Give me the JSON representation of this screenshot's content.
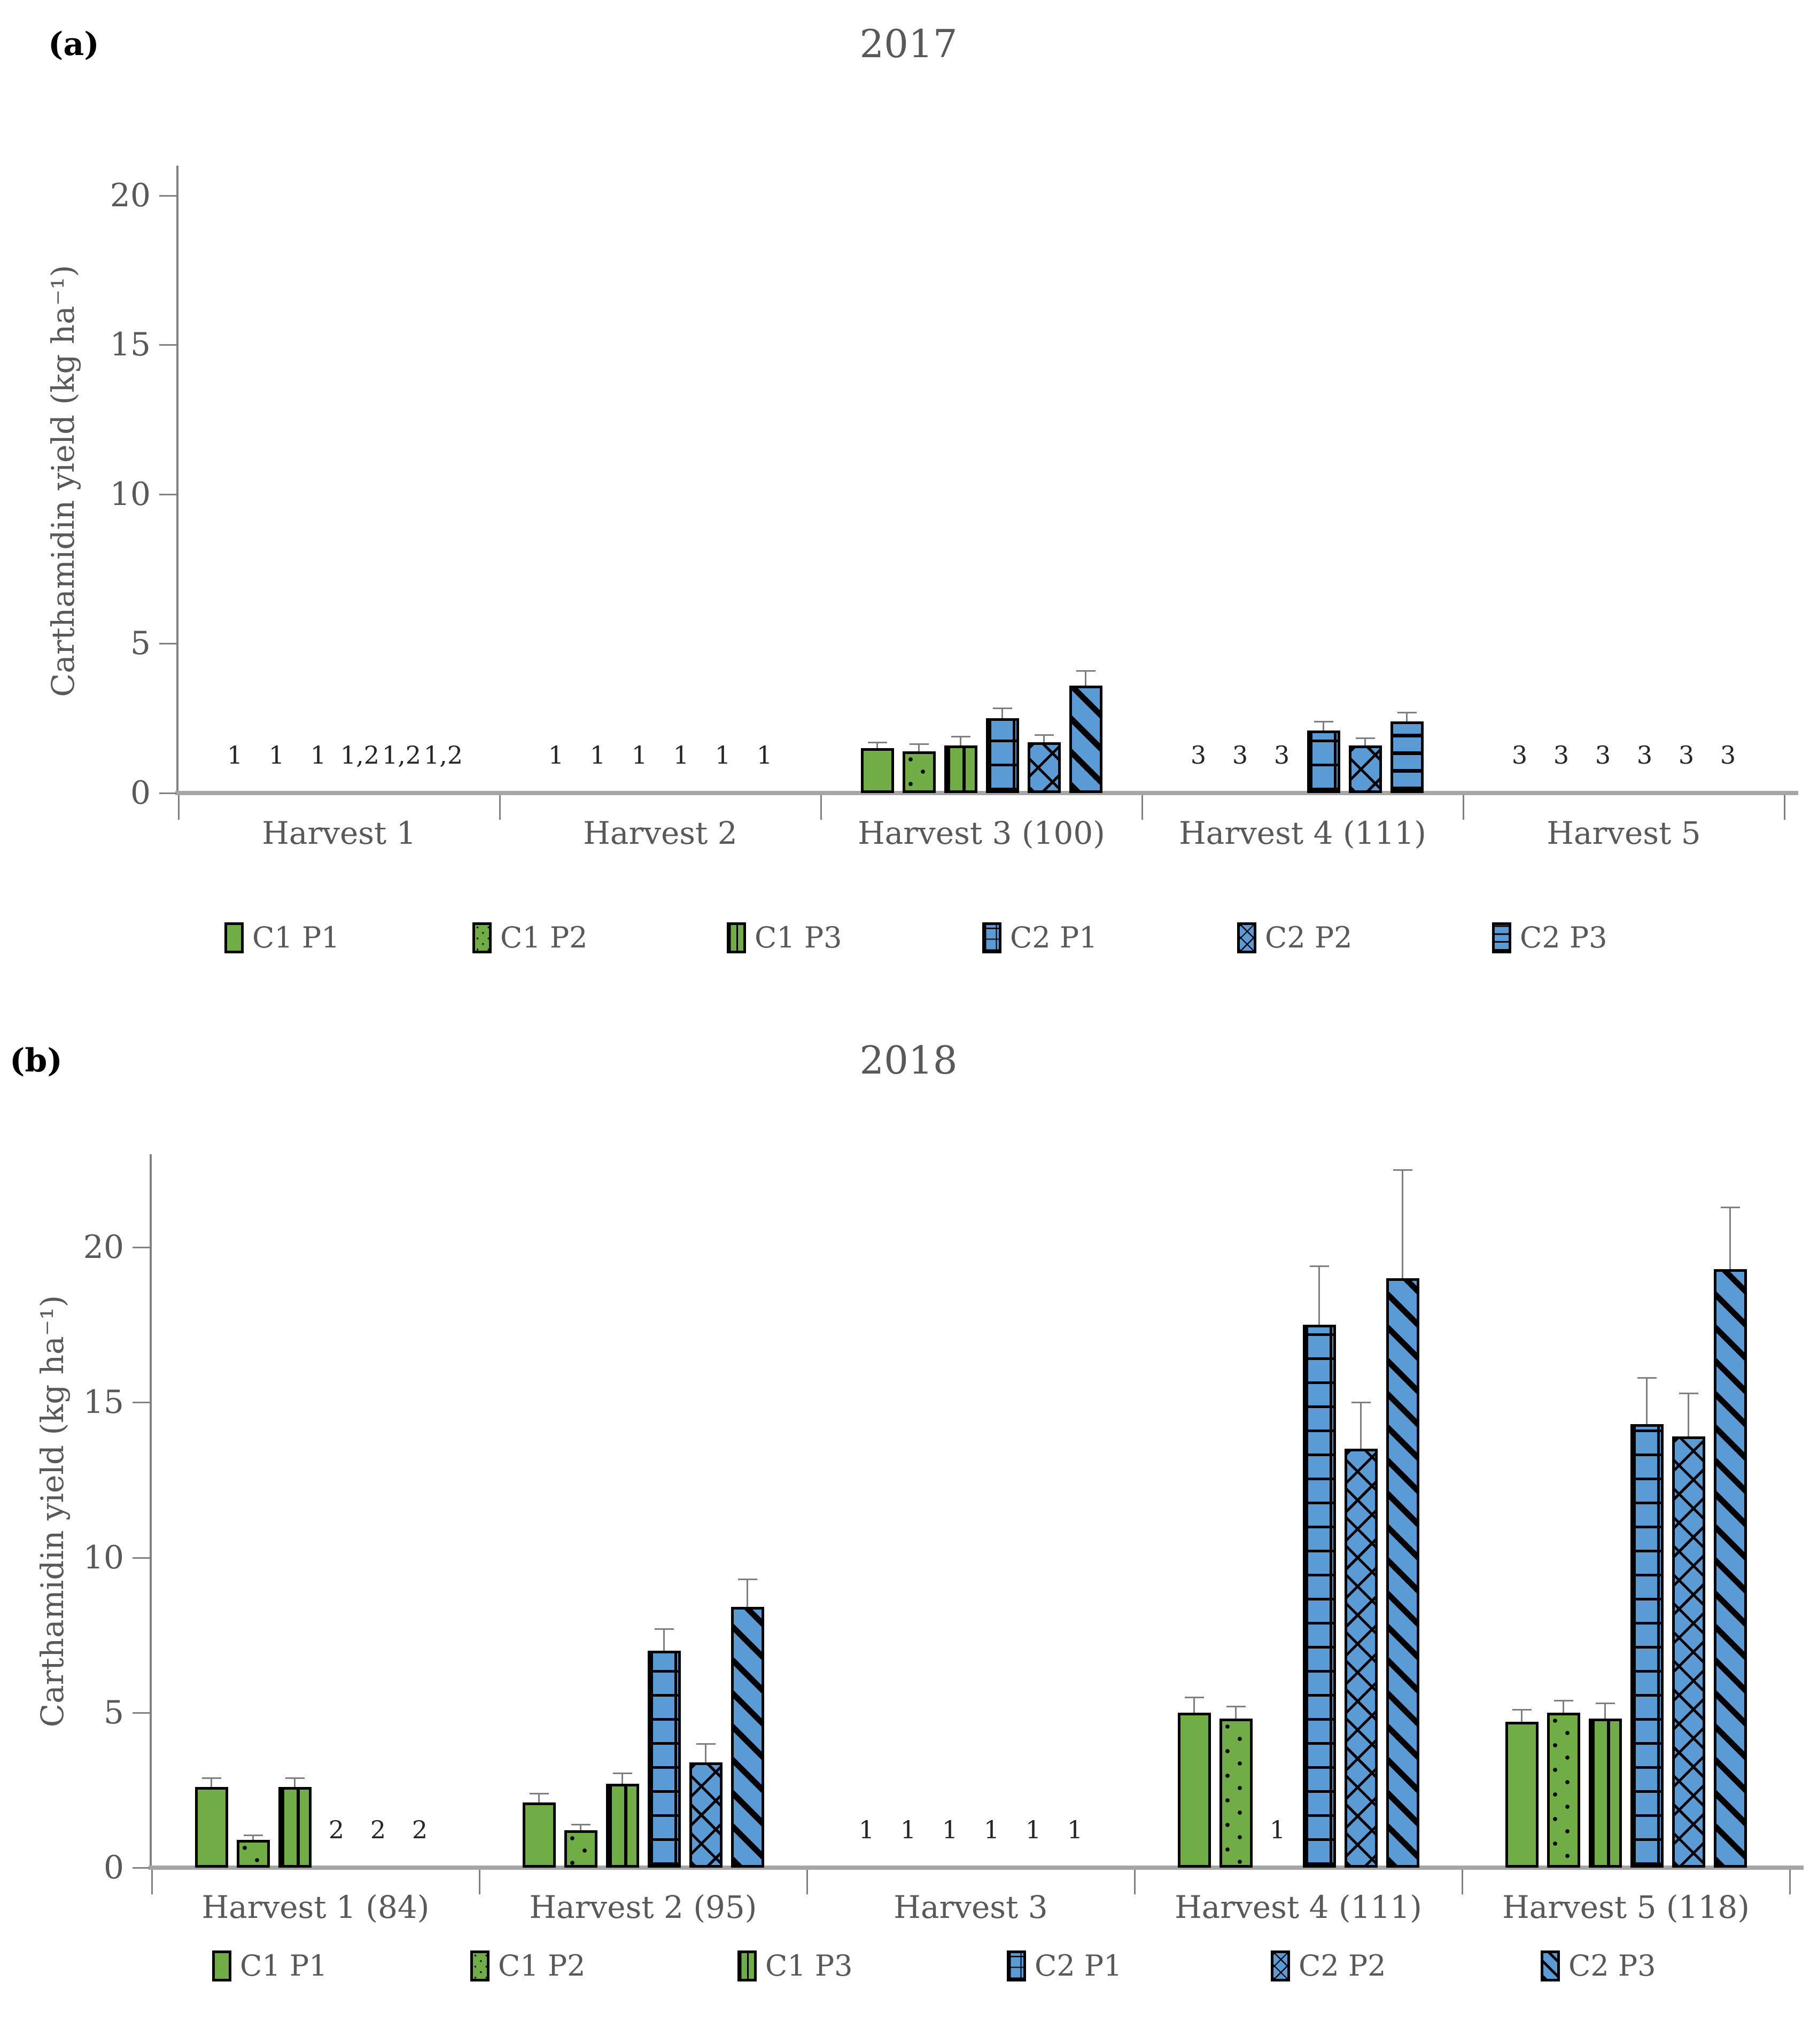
{
  "colors": {
    "green": "#70AD47",
    "blue": "#5B9BD5",
    "bar_border": "#000000",
    "axis": "#808080",
    "axis_baseline": "#a6a6a6",
    "text": "#595959",
    "sig_text": "#262626",
    "error_bar": "#7f7f7f",
    "panel_label": "#000000"
  },
  "chart_data": [
    {
      "type": "bar",
      "panel_label": "(a)",
      "title": "2017",
      "ylabel": "Carthamidin yield (kg ha⁻¹)",
      "yticks": [
        0,
        5,
        10,
        15,
        20
      ],
      "ylim": [
        0,
        21
      ],
      "grid": false,
      "legend_position": "bottom",
      "series": [
        {
          "name": "C1 P1",
          "pattern": "solid-green"
        },
        {
          "name": "C1 P2",
          "pattern": "dots-green"
        },
        {
          "name": "C1 P3",
          "pattern": "vstripes-green"
        },
        {
          "name": "C2 P1",
          "pattern": "grid-blue"
        },
        {
          "name": "C2 P2",
          "pattern": "crosshatch-blue"
        },
        {
          "name": "C2 P3",
          "pattern": "hstripes-blue"
        }
      ],
      "groups": [
        {
          "label": "Harvest 1",
          "values": [
            null,
            null,
            null,
            null,
            null,
            null
          ],
          "errors": [
            null,
            null,
            null,
            null,
            null,
            null
          ],
          "sig": [
            "1",
            "1",
            "1",
            "1,2",
            "1,2",
            "1,2"
          ]
        },
        {
          "label": "Harvest 2",
          "values": [
            null,
            null,
            null,
            null,
            null,
            null
          ],
          "errors": [
            null,
            null,
            null,
            null,
            null,
            null
          ],
          "sig": [
            "1",
            "1",
            "1",
            "1",
            "1",
            "1"
          ]
        },
        {
          "label": "Harvest 3 (100)",
          "values": [
            1.5,
            1.4,
            1.6,
            2.5,
            1.7,
            3.6
          ],
          "errors": [
            0.2,
            0.25,
            0.3,
            0.35,
            0.25,
            0.5
          ],
          "sig": [
            null,
            null,
            null,
            null,
            null,
            null
          ],
          "patterns": [
            null,
            null,
            null,
            null,
            null,
            "diag-blue"
          ]
        },
        {
          "label": "Harvest 4 (111)",
          "values": [
            null,
            null,
            null,
            2.1,
            1.6,
            2.4
          ],
          "errors": [
            null,
            null,
            null,
            0.3,
            0.25,
            0.3
          ],
          "sig": [
            "3",
            "3",
            "3",
            null,
            null,
            null
          ]
        },
        {
          "label": "Harvest 5",
          "values": [
            null,
            null,
            null,
            null,
            null,
            null
          ],
          "errors": [
            null,
            null,
            null,
            null,
            null,
            null
          ],
          "sig": [
            "3",
            "3",
            "3",
            "3",
            "3",
            "3"
          ]
        }
      ]
    },
    {
      "type": "bar",
      "panel_label": "(b)",
      "title": "2018",
      "ylabel": "Carthamidin yield (kg ha⁻¹)",
      "yticks": [
        0,
        5,
        10,
        15,
        20
      ],
      "ylim": [
        0,
        23
      ],
      "grid": false,
      "legend_position": "bottom",
      "series": [
        {
          "name": "C1 P1",
          "pattern": "solid-green"
        },
        {
          "name": "C1 P2",
          "pattern": "dots-green"
        },
        {
          "name": "C1 P3",
          "pattern": "vstripes-green"
        },
        {
          "name": "C2 P1",
          "pattern": "grid-blue"
        },
        {
          "name": "C2 P2",
          "pattern": "crosshatch-blue"
        },
        {
          "name": "C2 P3",
          "pattern": "diag-blue"
        }
      ],
      "groups": [
        {
          "label": "Harvest 1 (84)",
          "values": [
            2.6,
            0.9,
            2.6,
            null,
            null,
            null
          ],
          "errors": [
            0.3,
            0.15,
            0.3,
            null,
            null,
            null
          ],
          "sig": [
            null,
            null,
            null,
            "2",
            "2",
            "2"
          ]
        },
        {
          "label": "Harvest 2 (95)",
          "values": [
            2.1,
            1.2,
            2.7,
            7.0,
            3.4,
            8.4
          ],
          "errors": [
            0.3,
            0.2,
            0.35,
            0.7,
            0.6,
            0.9
          ],
          "sig": [
            null,
            null,
            null,
            null,
            null,
            null
          ]
        },
        {
          "label": "Harvest 3",
          "values": [
            null,
            null,
            null,
            null,
            null,
            null
          ],
          "errors": [
            null,
            null,
            null,
            null,
            null,
            null
          ],
          "sig": [
            "1",
            "1",
            "1",
            "1",
            "1",
            "1"
          ]
        },
        {
          "label": "Harvest 4 (111)",
          "values": [
            5.0,
            4.8,
            null,
            17.5,
            13.5,
            19.0
          ],
          "errors": [
            0.5,
            0.4,
            null,
            1.9,
            1.5,
            3.5
          ],
          "sig": [
            null,
            null,
            "1",
            null,
            null,
            null
          ]
        },
        {
          "label": "Harvest 5 (118)",
          "values": [
            4.7,
            5.0,
            4.8,
            14.3,
            13.9,
            19.3
          ],
          "errors": [
            0.4,
            0.4,
            0.5,
            1.5,
            1.4,
            2.0
          ],
          "sig": [
            null,
            null,
            null,
            null,
            null,
            null
          ]
        }
      ]
    }
  ]
}
